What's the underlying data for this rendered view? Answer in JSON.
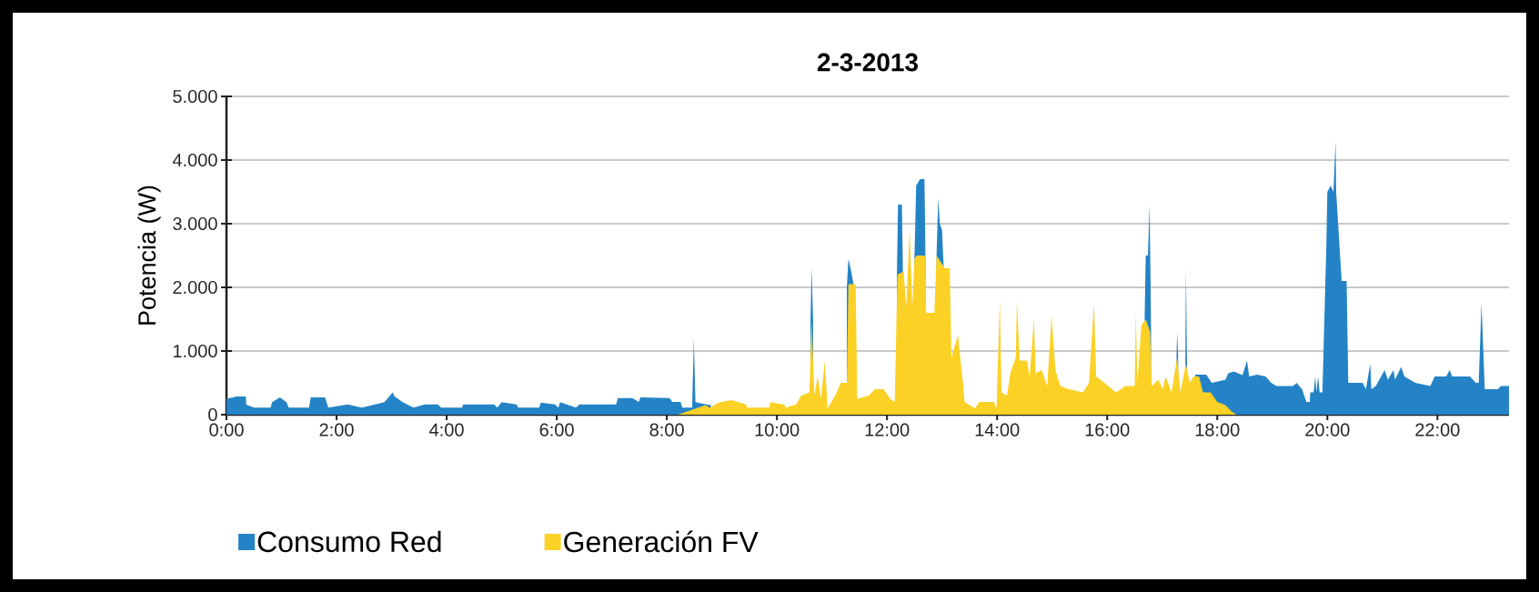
{
  "chart_data": {
    "type": "area",
    "title": "2-3-2013",
    "ylabel": "Potencia (W)",
    "xlim": [
      0,
      23.3
    ],
    "ylim": [
      0,
      5000
    ],
    "xticks": [
      {
        "value": 0,
        "label": "0:00"
      },
      {
        "value": 2,
        "label": "2:00"
      },
      {
        "value": 4,
        "label": "4:00"
      },
      {
        "value": 6,
        "label": "6:00"
      },
      {
        "value": 8,
        "label": "8:00"
      },
      {
        "value": 10,
        "label": "10:00"
      },
      {
        "value": 12,
        "label": "12:00"
      },
      {
        "value": 14,
        "label": "14:00"
      },
      {
        "value": 16,
        "label": "16:00"
      },
      {
        "value": 18,
        "label": "18:00"
      },
      {
        "value": 20,
        "label": "20:00"
      },
      {
        "value": 22,
        "label": "22:00"
      }
    ],
    "yticks": [
      0,
      {
        "value": 1000,
        "label": "1.000"
      },
      {
        "value": 2000,
        "label": "2.000"
      },
      {
        "value": 3000,
        "label": "3.000"
      },
      {
        "value": 4000,
        "label": "4.000"
      },
      {
        "value": 5000,
        "label": "5.000"
      }
    ],
    "grid": "y",
    "legend": "bottom",
    "series": [
      {
        "name": "Consumo Red",
        "color": "#2383c6",
        "x": [
          0,
          0.18,
          0.35,
          0.36,
          0.5,
          0.8,
          0.83,
          0.97,
          1.09,
          1.13,
          1.5,
          1.53,
          1.79,
          1.85,
          2.2,
          2.46,
          2.87,
          3.02,
          3.05,
          3.2,
          3.4,
          3.6,
          3.84,
          3.9,
          4.28,
          4.3,
          4.86,
          4.92,
          5,
          5.27,
          5.3,
          5.68,
          5.71,
          5.97,
          6.03,
          6.06,
          6.35,
          6.41,
          7.08,
          7.11,
          7.37,
          7.49,
          7.52,
          8.05,
          8.1,
          8.25,
          8.28,
          8.46,
          8.49,
          8.52,
          8.72,
          8.8,
          9,
          10.61,
          10.63,
          10.66,
          10.9,
          11.27,
          11.3,
          11.35,
          11.4,
          11.8,
          12.18,
          12.2,
          12.27,
          12.29,
          12.4,
          12.5,
          12.53,
          12.6,
          12.68,
          12.7,
          12.8,
          12.9,
          12.93,
          12.96,
          13,
          13.03,
          13.5,
          16.68,
          16.7,
          16.74,
          16.77,
          16.8,
          17,
          17.26,
          17.27,
          17.29,
          17.35,
          17.42,
          17.43,
          17.45,
          17.5,
          17.6,
          17.8,
          17.9,
          18.15,
          18.2,
          18.3,
          18.46,
          18.54,
          18.58,
          18.72,
          18.88,
          18.98,
          19.08,
          19.38,
          19.44,
          19.54,
          19.62,
          19.68,
          19.69,
          19.75,
          19.78,
          19.8,
          19.83,
          19.86,
          19.91,
          19.98,
          20,
          20.06,
          20.11,
          20.15,
          20.16,
          20.21,
          20.26,
          20.35,
          20.38,
          20.64,
          20.7,
          20.78,
          20.8,
          20.88,
          21.04,
          21.1,
          21.2,
          21.23,
          21.34,
          21.4,
          21.5,
          21.6,
          21.87,
          21.95,
          22.16,
          22.22,
          22.27,
          22.59,
          22.7,
          22.75,
          22.8,
          22.86,
          23.1,
          23.15,
          23.26,
          23.3
        ],
        "values": [
          250,
          285,
          285,
          157,
          110,
          110,
          195,
          270,
          195,
          110,
          110,
          270,
          270,
          110,
          160,
          110,
          195,
          350,
          290,
          195,
          110,
          160,
          160,
          110,
          110,
          160,
          160,
          110,
          195,
          160,
          110,
          110,
          190,
          160,
          110,
          195,
          110,
          160,
          160,
          260,
          260,
          200,
          270,
          260,
          200,
          200,
          110,
          110,
          1200,
          195,
          160,
          150,
          null,
          1470,
          2300,
          1400,
          null,
          2000,
          2450,
          2250,
          2000,
          null,
          2200,
          3300,
          3300,
          2200,
          null,
          2500,
          3600,
          3700,
          3700,
          2500,
          null,
          2500,
          3400,
          3000,
          2900,
          2300,
          null,
          1500,
          2500,
          2500,
          3300,
          1300,
          null,
          900,
          1300,
          900,
          null,
          800,
          2300,
          800,
          null,
          630,
          630,
          500,
          550,
          650,
          680,
          620,
          850,
          600,
          630,
          600,
          500,
          450,
          450,
          500,
          400,
          200,
          200,
          350,
          350,
          600,
          350,
          600,
          350,
          350,
          2600,
          3500,
          3600,
          3500,
          4300,
          3500,
          2800,
          2100,
          2100,
          500,
          500,
          400,
          800,
          400,
          450,
          700,
          550,
          700,
          550,
          750,
          600,
          550,
          500,
          450,
          600,
          600,
          700,
          600,
          600,
          500,
          500,
          1750,
          400,
          400,
          450,
          450,
          450
        ]
      },
      {
        "name": "Generación FV",
        "color": "#fcd125",
        "x": [
          8.2,
          8.7,
          8.78,
          8.96,
          9.18,
          9.44,
          9.46,
          9.86,
          9.88,
          10.13,
          10.16,
          10.35,
          10.44,
          10.59,
          10.63,
          10.68,
          10.74,
          10.8,
          10.87,
          10.92,
          11.06,
          11.16,
          11.27,
          11.3,
          11.43,
          11.46,
          11.67,
          11.78,
          11.94,
          12.06,
          12.14,
          12.19,
          12.3,
          12.35,
          12.41,
          12.46,
          12.5,
          12.54,
          12.7,
          12.71,
          12.86,
          12.9,
          13.05,
          13.14,
          13.17,
          13.29,
          13.33,
          13.38,
          13.41,
          13.6,
          13.68,
          13.94,
          13.99,
          14.05,
          14.08,
          14.18,
          14.24,
          14.34,
          14.36,
          14.41,
          14.54,
          14.59,
          14.67,
          14.7,
          14.81,
          14.91,
          14.99,
          15.06,
          15.15,
          15.3,
          15.56,
          15.67,
          15.76,
          15.8,
          15.95,
          16.16,
          16.33,
          16.5,
          16.52,
          16.55,
          16.62,
          16.7,
          16.78,
          16.81,
          16.93,
          17.01,
          17.06,
          17.17,
          17.27,
          17.33,
          17.43,
          17.5,
          17.57,
          17.67,
          17.74,
          17.88,
          18,
          18.15,
          18.26,
          18.35
        ],
        "values": [
          0,
          150,
          110,
          195,
          230,
          160,
          110,
          110,
          195,
          160,
          110,
          160,
          300,
          350,
          1470,
          300,
          600,
          250,
          850,
          100,
          300,
          500,
          500,
          2050,
          2050,
          250,
          300,
          400,
          400,
          250,
          200,
          2200,
          2250,
          1700,
          2900,
          1700,
          2450,
          2500,
          2500,
          1600,
          1600,
          2500,
          2300,
          2300,
          900,
          1250,
          900,
          500,
          200,
          100,
          200,
          200,
          100,
          1800,
          350,
          300,
          650,
          900,
          1800,
          850,
          850,
          600,
          1500,
          650,
          700,
          450,
          1550,
          700,
          450,
          400,
          350,
          500,
          1750,
          600,
          500,
          350,
          450,
          450,
          1600,
          500,
          1400,
          1500,
          1300,
          450,
          550,
          400,
          600,
          350,
          900,
          350,
          800,
          500,
          600,
          600,
          350,
          350,
          200,
          150,
          50,
          0
        ]
      }
    ]
  }
}
